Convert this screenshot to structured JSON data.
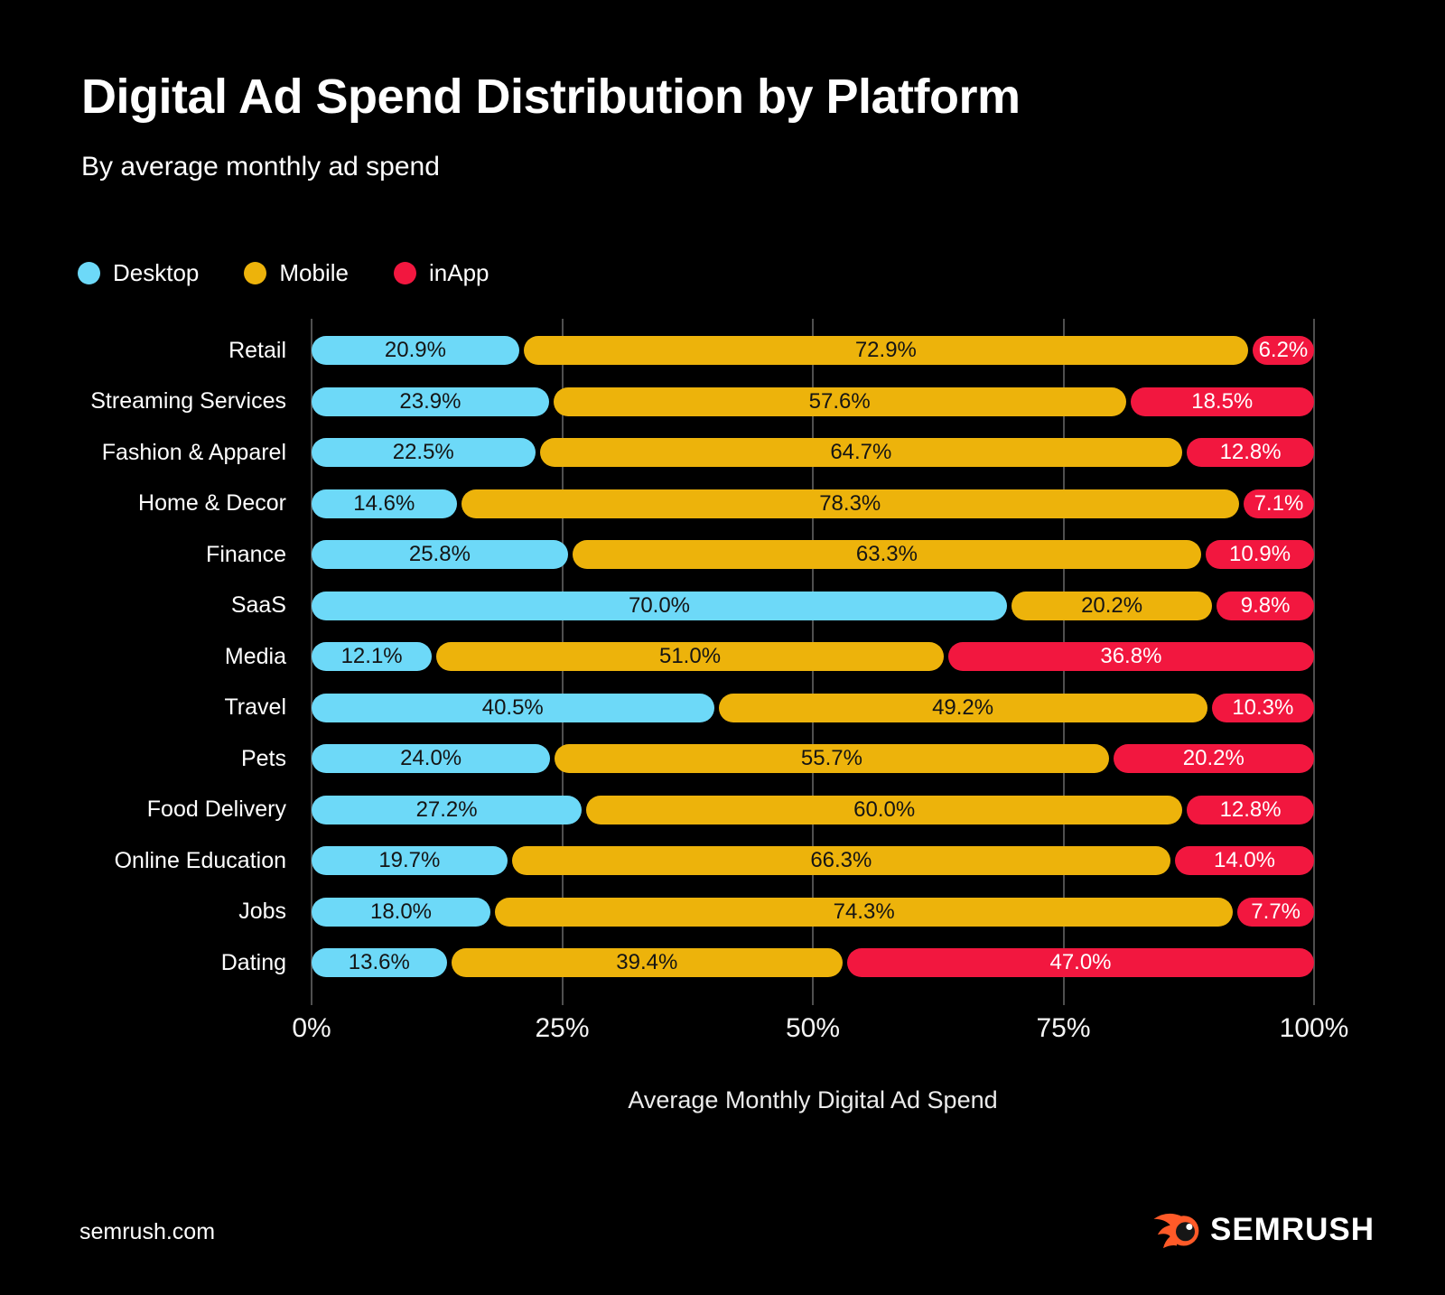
{
  "header": {
    "title": "Digital Ad Spend Distribution by Platform",
    "subtitle": "By average monthly ad spend"
  },
  "legend": [
    {
      "label": "Desktop",
      "color": "#6DD9F8"
    },
    {
      "label": "Mobile",
      "color": "#EDB30B"
    },
    {
      "label": "inApp",
      "color": "#F2173F"
    }
  ],
  "chart_data": {
    "type": "bar",
    "stacked": true,
    "orientation": "horizontal",
    "title": "Digital Ad Spend Distribution by Platform",
    "subtitle": "By average monthly ad spend",
    "xlabel": "Average Monthly Digital Ad Spend",
    "xlim": [
      0,
      100
    ],
    "grid": "vertical",
    "background": "#000000",
    "value_suffix": "%",
    "categories": [
      "Retail",
      "Streaming Services",
      "Fashion & Apparel",
      "Home & Decor",
      "Finance",
      "SaaS",
      "Media",
      "Travel",
      "Pets",
      "Food Delivery",
      "Online Education",
      "Jobs",
      "Dating"
    ],
    "series": [
      {
        "name": "Desktop",
        "color": "#6DD9F8",
        "text_color": "#141414",
        "values": [
          20.9,
          23.9,
          22.5,
          14.6,
          25.8,
          70.0,
          12.1,
          40.5,
          24.0,
          27.2,
          19.7,
          18.0,
          13.6
        ]
      },
      {
        "name": "Mobile",
        "color": "#EDB30B",
        "text_color": "#141414",
        "values": [
          72.9,
          57.6,
          64.7,
          78.3,
          63.3,
          20.2,
          51.0,
          49.2,
          55.7,
          60.0,
          66.3,
          74.3,
          39.4
        ]
      },
      {
        "name": "inApp",
        "color": "#F2173F",
        "text_color": "#ffffff",
        "values": [
          6.2,
          18.5,
          12.8,
          7.1,
          10.9,
          9.8,
          36.8,
          10.3,
          20.2,
          12.8,
          14.0,
          7.7,
          47.0
        ]
      }
    ],
    "x_ticks": [
      {
        "label": "0%",
        "value": 0
      },
      {
        "label": "25%",
        "value": 25
      },
      {
        "label": "50%",
        "value": 50
      },
      {
        "label": "75%",
        "value": 75
      },
      {
        "label": "100%",
        "value": 100
      }
    ]
  },
  "footer": {
    "site": "semrush.com",
    "brand": "SEMRUSH",
    "brand_color": "#FF5A28"
  }
}
